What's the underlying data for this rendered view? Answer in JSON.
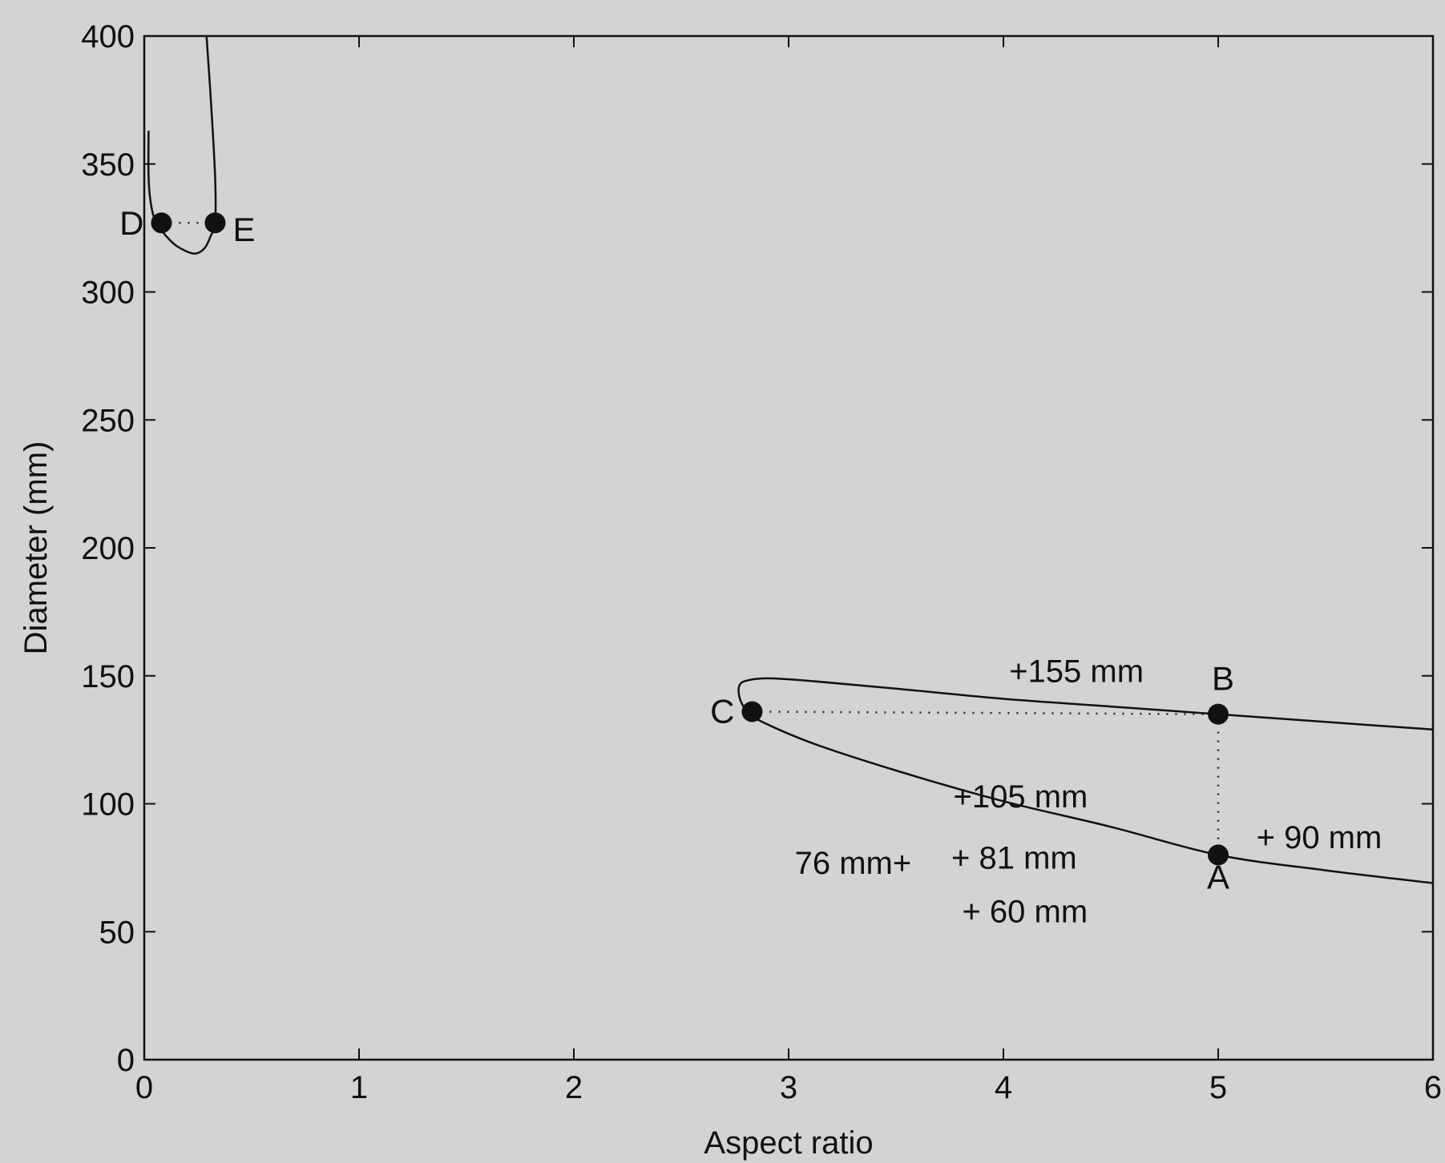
{
  "chart_data": {
    "type": "line",
    "title": "",
    "xlabel": "Aspect ratio",
    "ylabel": "Diameter (mm)",
    "xlim": [
      0,
      6
    ],
    "ylim": [
      0,
      400
    ],
    "x_ticks": [
      "0",
      "1",
      "2",
      "3",
      "4",
      "5",
      "6"
    ],
    "y_ticks": [
      "0",
      "50",
      "100",
      "150",
      "200",
      "250",
      "300",
      "350",
      "400"
    ],
    "grid": false,
    "series": [
      {
        "points": [
          [
            6.0,
            129
          ],
          [
            5.5,
            132
          ],
          [
            5.0,
            135
          ],
          [
            4.5,
            138
          ],
          [
            4.0,
            141
          ],
          [
            3.5,
            145
          ],
          [
            3.1,
            148
          ],
          [
            2.9,
            149
          ],
          [
            2.8,
            148
          ],
          [
            2.77,
            146
          ],
          [
            2.77,
            142
          ],
          [
            2.79,
            138
          ],
          [
            2.83,
            134
          ],
          [
            3.1,
            124
          ],
          [
            3.5,
            113
          ],
          [
            4.0,
            101
          ],
          [
            4.5,
            91
          ],
          [
            5.0,
            80
          ],
          [
            5.5,
            74
          ],
          [
            6.0,
            69
          ]
        ]
      },
      {
        "points": [
          [
            0.02,
            363
          ],
          [
            0.02,
            345
          ],
          [
            0.03,
            335
          ],
          [
            0.05,
            328
          ],
          [
            0.09,
            323
          ],
          [
            0.15,
            318
          ],
          [
            0.23,
            315
          ],
          [
            0.28,
            317
          ],
          [
            0.31,
            322
          ],
          [
            0.33,
            327
          ],
          [
            0.33,
            345
          ],
          [
            0.31,
            375
          ],
          [
            0.29,
            400
          ]
        ]
      }
    ],
    "points": [
      {
        "label": "A",
        "x": 5.0,
        "y": 80
      },
      {
        "label": "B",
        "x": 5.0,
        "y": 135
      },
      {
        "label": "C",
        "x": 2.83,
        "y": 136
      },
      {
        "label": "D",
        "x": 0.08,
        "y": 327
      },
      {
        "label": "E",
        "x": 0.33,
        "y": 327
      }
    ],
    "dotted_lines": [
      [
        [
          2.83,
          136
        ],
        [
          5.0,
          135
        ]
      ],
      [
        [
          5.0,
          135
        ],
        [
          5.0,
          80
        ]
      ],
      [
        [
          0.08,
          327
        ],
        [
          0.33,
          327
        ]
      ]
    ],
    "annotations": [
      {
        "text": "+155 mm",
        "x": 4.34,
        "y": 152
      },
      {
        "text": "+105 mm",
        "x": 4.08,
        "y": 103
      },
      {
        "text": "+ 90 mm",
        "x": 5.47,
        "y": 87
      },
      {
        "text": "76 mm+",
        "x": 3.3,
        "y": 77
      },
      {
        "text": "+ 81 mm",
        "x": 4.05,
        "y": 79
      },
      {
        "text": "+ 60 mm",
        "x": 4.1,
        "y": 58
      }
    ]
  }
}
